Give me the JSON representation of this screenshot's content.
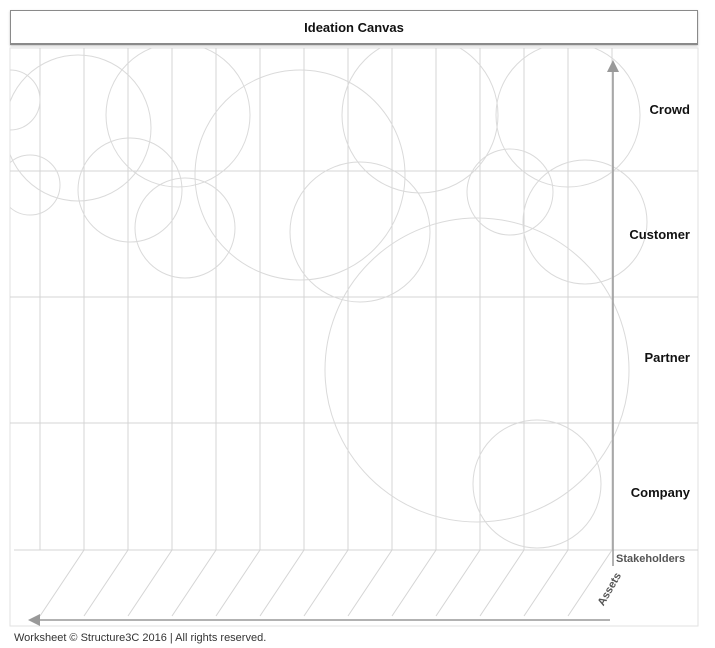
{
  "title": "Ideation Canvas",
  "rows": [
    "Crowd",
    "Customer",
    "Partner",
    "Company"
  ],
  "axis": {
    "vertical_label": "Stakeholders",
    "horizontal_label": "Assets"
  },
  "footer": "Worksheet © Structure3C 2016 | All rights reserved.",
  "colors": {
    "grid": "#d4d4d4",
    "circles": "#dadada",
    "axis": "#999999"
  }
}
